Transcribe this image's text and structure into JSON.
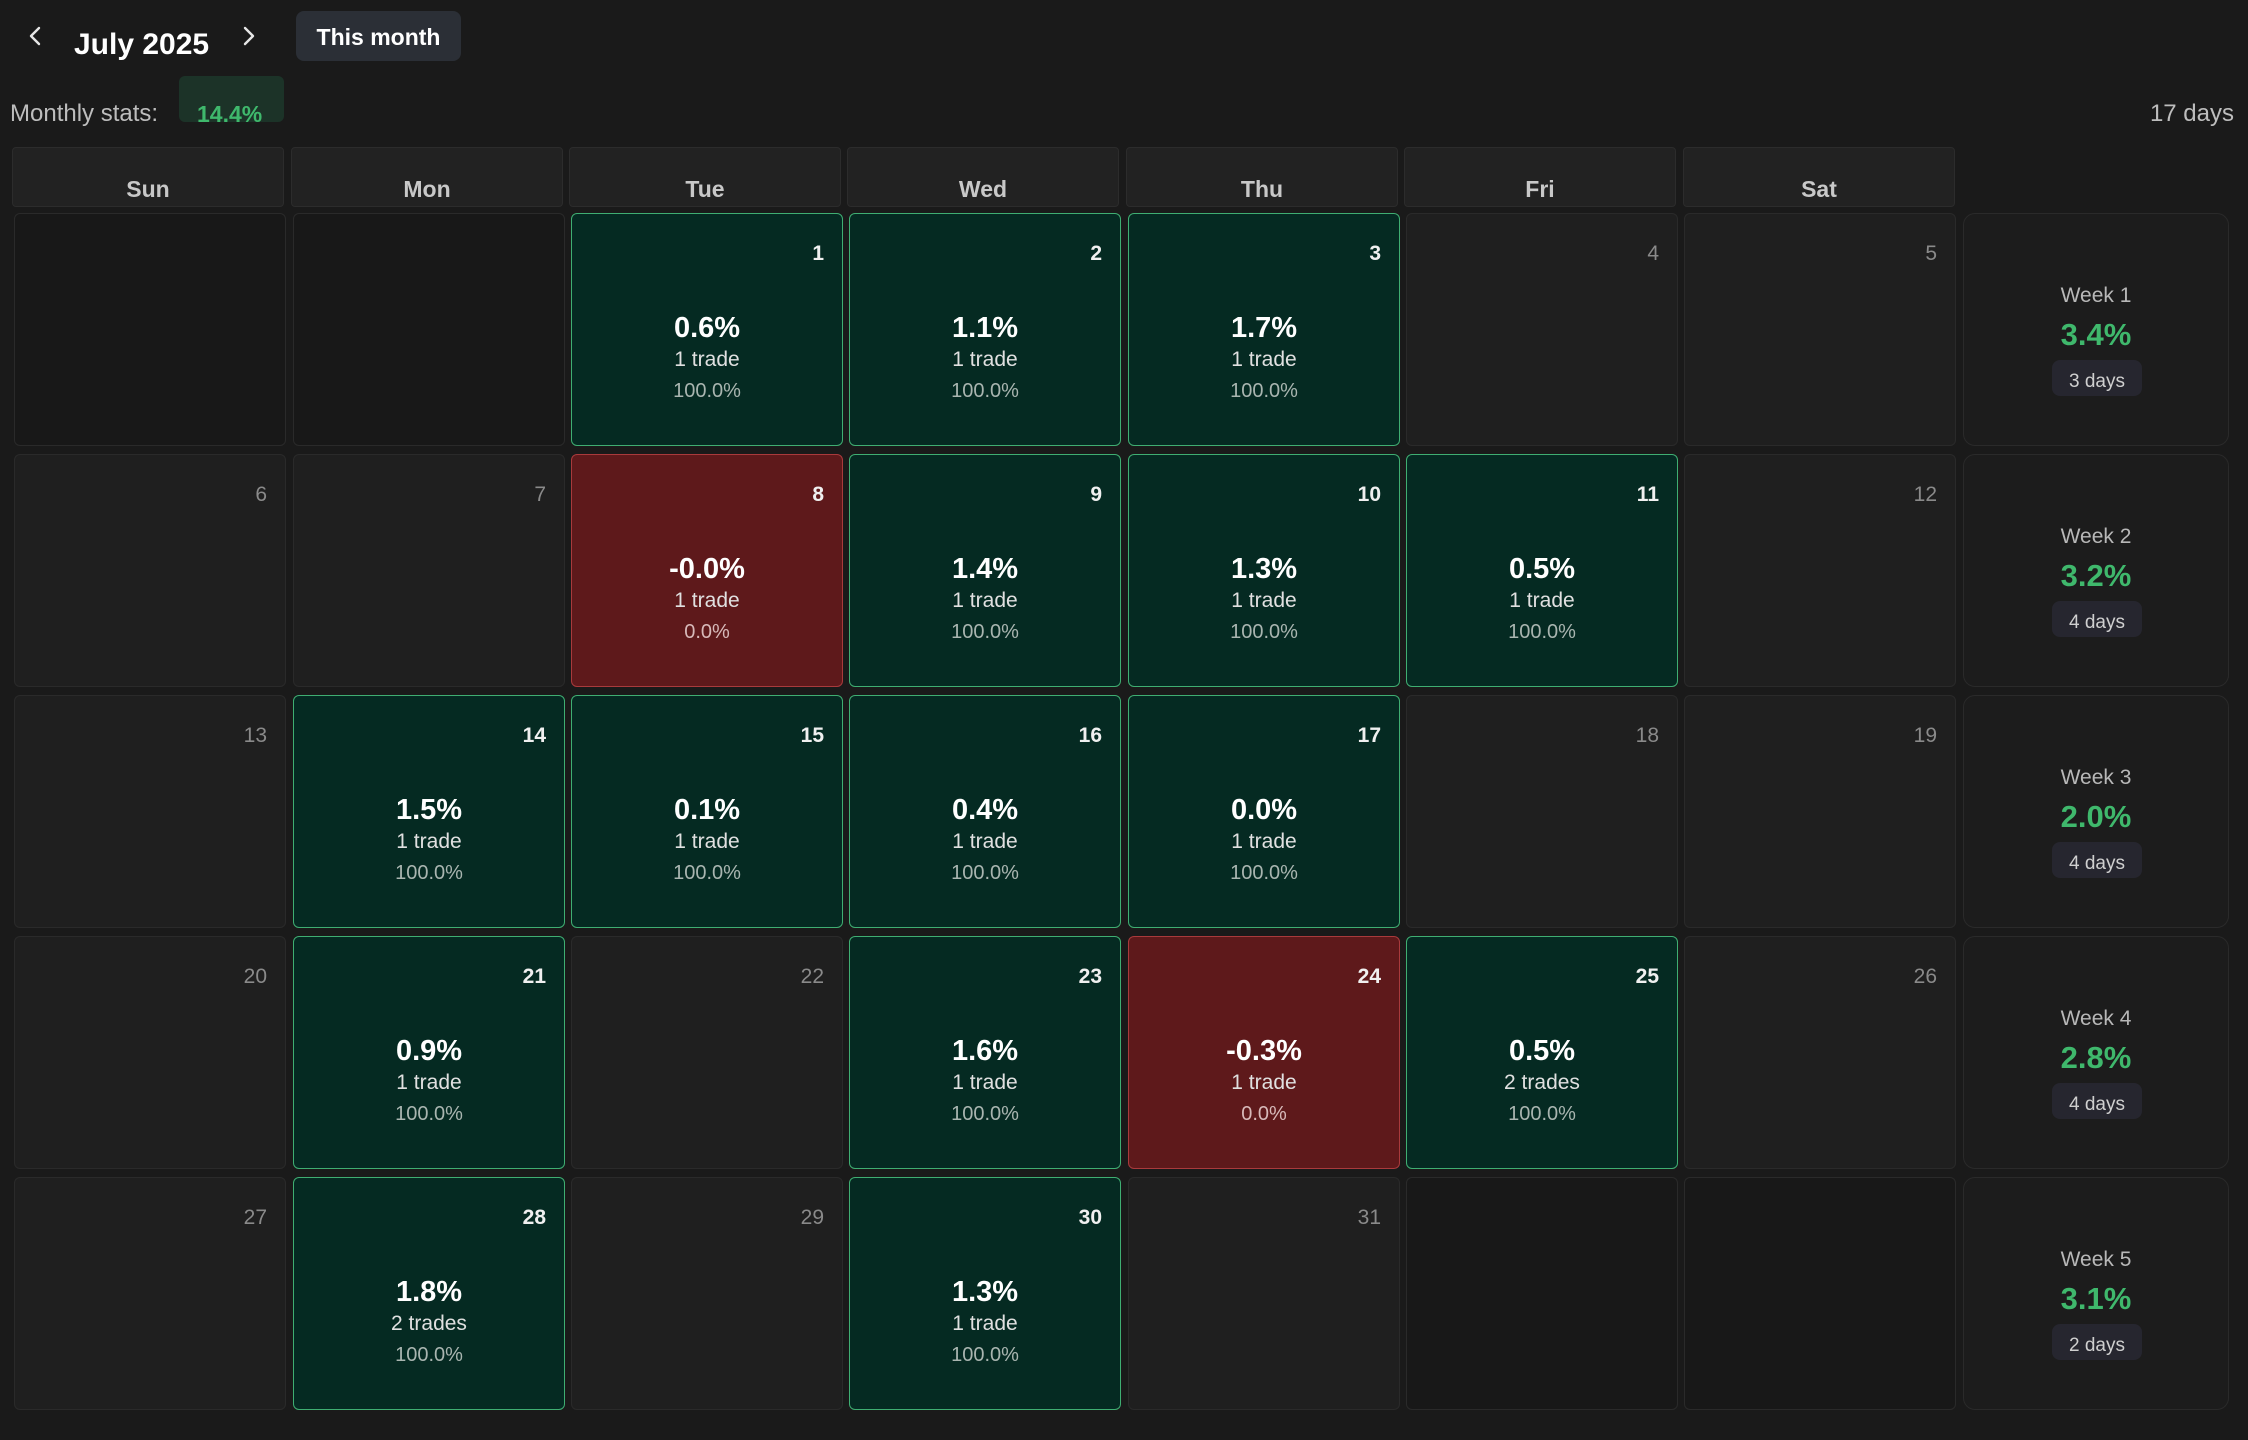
{
  "header": {
    "prev_icon": "chevron-left-icon",
    "next_icon": "chevron-right-icon",
    "month_title": "July 2025",
    "this_month_label": "This month"
  },
  "stats": {
    "label": "Monthly stats:",
    "monthly_pct": "14.4%",
    "total_days": "17 days"
  },
  "weekdays": [
    "Sun",
    "Mon",
    "Tue",
    "Wed",
    "Thu",
    "Fri",
    "Sat"
  ],
  "colors": {
    "win_bg": "#052a22",
    "win_border": "#3fae72",
    "loss_bg": "#5e191b",
    "accent_green": "#3fb86c"
  },
  "weeks": [
    {
      "label": "Week 1",
      "pct": "3.4%",
      "days": "3 days",
      "cells": [
        {
          "day": "",
          "status": "empty"
        },
        {
          "day": "",
          "status": "empty"
        },
        {
          "day": "1",
          "status": "win",
          "pct": "0.6%",
          "trades": "1 trade",
          "rate": "100.0%"
        },
        {
          "day": "2",
          "status": "win",
          "pct": "1.1%",
          "trades": "1 trade",
          "rate": "100.0%"
        },
        {
          "day": "3",
          "status": "win",
          "pct": "1.7%",
          "trades": "1 trade",
          "rate": "100.0%"
        },
        {
          "day": "4",
          "status": "none"
        },
        {
          "day": "5",
          "status": "none"
        }
      ]
    },
    {
      "label": "Week 2",
      "pct": "3.2%",
      "days": "4 days",
      "cells": [
        {
          "day": "6",
          "status": "none"
        },
        {
          "day": "7",
          "status": "none"
        },
        {
          "day": "8",
          "status": "loss",
          "pct": "-0.0%",
          "trades": "1 trade",
          "rate": "0.0%"
        },
        {
          "day": "9",
          "status": "win",
          "pct": "1.4%",
          "trades": "1 trade",
          "rate": "100.0%"
        },
        {
          "day": "10",
          "status": "win",
          "pct": "1.3%",
          "trades": "1 trade",
          "rate": "100.0%"
        },
        {
          "day": "11",
          "status": "win",
          "pct": "0.5%",
          "trades": "1 trade",
          "rate": "100.0%"
        },
        {
          "day": "12",
          "status": "none"
        }
      ]
    },
    {
      "label": "Week 3",
      "pct": "2.0%",
      "days": "4 days",
      "cells": [
        {
          "day": "13",
          "status": "none"
        },
        {
          "day": "14",
          "status": "win",
          "pct": "1.5%",
          "trades": "1 trade",
          "rate": "100.0%"
        },
        {
          "day": "15",
          "status": "win",
          "pct": "0.1%",
          "trades": "1 trade",
          "rate": "100.0%"
        },
        {
          "day": "16",
          "status": "win",
          "pct": "0.4%",
          "trades": "1 trade",
          "rate": "100.0%"
        },
        {
          "day": "17",
          "status": "win",
          "pct": "0.0%",
          "trades": "1 trade",
          "rate": "100.0%"
        },
        {
          "day": "18",
          "status": "none"
        },
        {
          "day": "19",
          "status": "none"
        }
      ]
    },
    {
      "label": "Week 4",
      "pct": "2.8%",
      "days": "4 days",
      "cells": [
        {
          "day": "20",
          "status": "none"
        },
        {
          "day": "21",
          "status": "win",
          "pct": "0.9%",
          "trades": "1 trade",
          "rate": "100.0%"
        },
        {
          "day": "22",
          "status": "none"
        },
        {
          "day": "23",
          "status": "win",
          "pct": "1.6%",
          "trades": "1 trade",
          "rate": "100.0%"
        },
        {
          "day": "24",
          "status": "loss",
          "pct": "-0.3%",
          "trades": "1 trade",
          "rate": "0.0%"
        },
        {
          "day": "25",
          "status": "win",
          "pct": "0.5%",
          "trades": "2 trades",
          "rate": "100.0%"
        },
        {
          "day": "26",
          "status": "none"
        }
      ]
    },
    {
      "label": "Week 5",
      "pct": "3.1%",
      "days": "2 days",
      "cells": [
        {
          "day": "27",
          "status": "none"
        },
        {
          "day": "28",
          "status": "win",
          "pct": "1.8%",
          "trades": "2 trades",
          "rate": "100.0%"
        },
        {
          "day": "29",
          "status": "none"
        },
        {
          "day": "30",
          "status": "win",
          "pct": "1.3%",
          "trades": "1 trade",
          "rate": "100.0%"
        },
        {
          "day": "31",
          "status": "none"
        },
        {
          "day": "",
          "status": "empty"
        },
        {
          "day": "",
          "status": "empty"
        }
      ]
    }
  ]
}
